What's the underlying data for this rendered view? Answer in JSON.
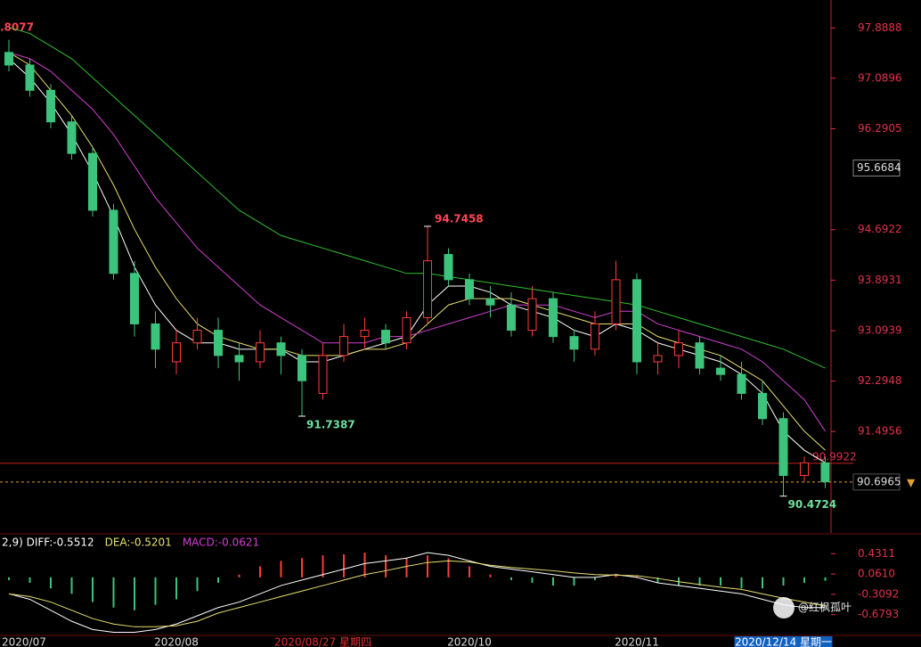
{
  "chart_data": [
    {
      "type": "candlestick",
      "top_left_label": ".8077",
      "categories": [
        "2020/07",
        null,
        null,
        null,
        null,
        null,
        null,
        null,
        "2020/08",
        null,
        null,
        null,
        null,
        null,
        null,
        "2020/08/27 星期四",
        null,
        null,
        null,
        null,
        null,
        null,
        "2020/10",
        null,
        null,
        null,
        null,
        null,
        null,
        null,
        "2020/11",
        null,
        null,
        null,
        null,
        null,
        null,
        "2020/12/14 星期一",
        null,
        null
      ],
      "open": [
        97.5,
        97.3,
        96.9,
        96.4,
        95.9,
        95.0,
        94.0,
        93.2,
        92.6,
        92.9,
        93.1,
        92.7,
        92.6,
        92.9,
        92.7,
        92.1,
        92.7,
        93.0,
        93.1,
        92.9,
        93.3,
        94.3,
        93.9,
        93.6,
        93.5,
        93.1,
        93.6,
        93.0,
        92.8,
        93.2,
        93.9,
        92.6,
        92.7,
        92.9,
        92.5,
        92.4,
        92.1,
        91.7,
        90.8,
        91.0
      ],
      "high": [
        97.7,
        97.4,
        97.0,
        96.5,
        96.0,
        95.1,
        94.2,
        93.4,
        93.1,
        93.3,
        93.3,
        92.9,
        93.1,
        93.0,
        92.8,
        92.9,
        93.2,
        93.3,
        93.2,
        93.4,
        94.7458,
        94.4,
        94.0,
        93.8,
        93.7,
        93.8,
        93.7,
        93.1,
        93.4,
        94.2,
        94.0,
        92.9,
        93.1,
        93.0,
        92.7,
        92.6,
        92.3,
        91.8,
        91.1,
        91.1
      ],
      "low": [
        97.2,
        96.8,
        96.3,
        95.8,
        94.9,
        93.9,
        93.0,
        92.5,
        92.4,
        92.8,
        92.5,
        92.3,
        92.5,
        92.4,
        91.7387,
        92.0,
        92.6,
        92.8,
        92.8,
        92.8,
        93.2,
        93.8,
        93.5,
        93.3,
        93.0,
        93.0,
        92.9,
        92.6,
        92.7,
        93.1,
        92.4,
        92.4,
        92.5,
        92.4,
        92.3,
        92.0,
        91.6,
        90.4724,
        90.7,
        90.6
      ],
      "close": [
        97.3,
        96.9,
        96.4,
        95.9,
        95.0,
        94.0,
        93.2,
        92.8,
        92.9,
        93.1,
        92.7,
        92.6,
        92.9,
        92.7,
        92.3,
        92.7,
        93.0,
        93.1,
        92.9,
        93.3,
        94.2,
        93.9,
        93.6,
        93.5,
        93.1,
        93.6,
        93.0,
        92.8,
        93.2,
        93.9,
        92.6,
        92.7,
        92.9,
        92.5,
        92.4,
        92.1,
        91.7,
        90.8,
        91.0,
        90.7
      ],
      "up_color": "#ff3b3b",
      "down_color": "#3cc47c",
      "series": [
        {
          "color": "#ffffff",
          "values": [
            97.4,
            97.1,
            96.7,
            96.2,
            95.6,
            94.9,
            94.1,
            93.5,
            93.1,
            92.9,
            92.9,
            92.8,
            92.8,
            92.8,
            92.6,
            92.6,
            92.7,
            92.8,
            92.9,
            93.0,
            93.5,
            93.8,
            93.8,
            93.7,
            93.5,
            93.4,
            93.3,
            93.1,
            93.0,
            93.2,
            93.1,
            92.9,
            92.8,
            92.7,
            92.6,
            92.4,
            92.1,
            91.5,
            91.2,
            91.0
          ]
        },
        {
          "color": "#e8e070",
          "values": [
            97.5,
            97.3,
            96.9,
            96.5,
            96.0,
            95.4,
            94.7,
            94.1,
            93.6,
            93.2,
            93.0,
            92.9,
            92.8,
            92.8,
            92.7,
            92.7,
            92.7,
            92.8,
            92.8,
            92.9,
            93.2,
            93.5,
            93.6,
            93.6,
            93.6,
            93.5,
            93.4,
            93.3,
            93.2,
            93.2,
            93.2,
            93.0,
            92.9,
            92.8,
            92.7,
            92.5,
            92.3,
            91.9,
            91.5,
            91.2
          ]
        },
        {
          "color": "#d040d0",
          "values": [
            97.5,
            97.4,
            97.2,
            96.9,
            96.6,
            96.2,
            95.7,
            95.2,
            94.8,
            94.4,
            94.1,
            93.8,
            93.5,
            93.3,
            93.1,
            92.9,
            92.9,
            92.9,
            93.0,
            93.0,
            93.1,
            93.2,
            93.3,
            93.4,
            93.5,
            93.5,
            93.5,
            93.4,
            93.3,
            93.4,
            93.4,
            93.2,
            93.1,
            93.0,
            92.9,
            92.8,
            92.6,
            92.3,
            92.0,
            91.5
          ]
        },
        {
          "color": "#30c030",
          "values": [
            97.9,
            97.8,
            97.6,
            97.4,
            97.1,
            96.8,
            96.5,
            96.2,
            95.9,
            95.6,
            95.3,
            95.0,
            94.8,
            94.6,
            94.5,
            94.4,
            94.3,
            94.2,
            94.1,
            94.0,
            94.0,
            93.95,
            93.9,
            93.85,
            93.8,
            93.75,
            93.7,
            93.65,
            93.6,
            93.55,
            93.5,
            93.4,
            93.3,
            93.2,
            93.1,
            93.0,
            92.9,
            92.8,
            92.65,
            92.5
          ]
        }
      ],
      "ylim": [
        89.89,
        98.33
      ],
      "yticks": [
        97.8888,
        97.0896,
        96.2905,
        94.6922,
        93.8931,
        93.0939,
        92.2948,
        91.4956
      ],
      "cursor_price": 95.6684,
      "price_line": 90.9922,
      "reference_line": 90.6965
    },
    {
      "type": "macd",
      "series": [
        {
          "name": "2,9) DIFF:",
          "color": "#ffffff",
          "values": [
            -0.3,
            -0.4,
            -0.6,
            -0.8,
            -0.95,
            -1.0,
            -1.0,
            -0.95,
            -0.85,
            -0.7,
            -0.55,
            -0.45,
            -0.3,
            -0.15,
            -0.05,
            0.05,
            0.15,
            0.25,
            0.3,
            0.35,
            0.45,
            0.4,
            0.3,
            0.2,
            0.15,
            0.1,
            0.05,
            0.0,
            0.0,
            0.05,
            0.0,
            -0.1,
            -0.15,
            -0.2,
            -0.25,
            -0.3,
            -0.4,
            -0.5,
            -0.55,
            -0.5512
          ]
        },
        {
          "name": "DEA:",
          "color": "#e8e070",
          "values": [
            -0.3,
            -0.35,
            -0.45,
            -0.6,
            -0.75,
            -0.85,
            -0.9,
            -0.9,
            -0.88,
            -0.8,
            -0.65,
            -0.55,
            -0.45,
            -0.35,
            -0.25,
            -0.15,
            -0.05,
            0.05,
            0.12,
            0.2,
            0.27,
            0.3,
            0.28,
            0.22,
            0.18,
            0.15,
            0.12,
            0.08,
            0.05,
            0.04,
            0.03,
            -0.02,
            -0.08,
            -0.13,
            -0.18,
            -0.22,
            -0.3,
            -0.38,
            -0.45,
            -0.5201
          ]
        },
        {
          "name": "MACD:",
          "color": "#d040d0",
          "values": [
            -0.05,
            -0.1,
            -0.2,
            -0.3,
            -0.45,
            -0.55,
            -0.6,
            -0.5,
            -0.4,
            -0.25,
            -0.1,
            0.05,
            0.2,
            0.3,
            0.35,
            0.4,
            0.42,
            0.45,
            0.4,
            0.35,
            0.4,
            0.35,
            0.2,
            0.05,
            -0.05,
            -0.1,
            -0.15,
            -0.15,
            -0.05,
            0.05,
            0.02,
            -0.1,
            -0.15,
            -0.15,
            -0.15,
            -0.2,
            -0.2,
            -0.15,
            -0.1,
            -0.0621
          ]
        }
      ],
      "up_color": "#ff3b3b",
      "down_color": "#3cc47c",
      "ylim": [
        -1.041,
        0.776
      ],
      "yticks": [
        0.4311,
        {
          "value": 0.061,
          "label": "0.0610"
        },
        -0.3092,
        -0.6793
      ],
      "watermark": "@红枫孤叶"
    }
  ]
}
